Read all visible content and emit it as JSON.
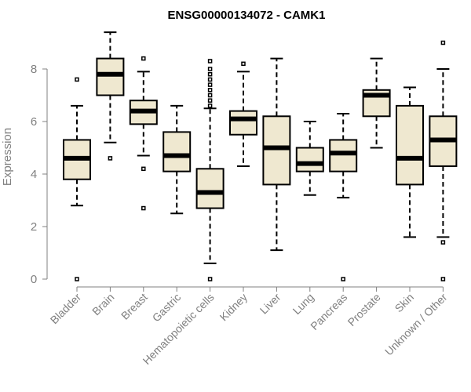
{
  "chart_data": {
    "type": "boxplot",
    "title": "ENSG00000134072 - CAMK1",
    "xlabel": "",
    "ylabel": "Expression",
    "ylim": [
      0,
      9.5
    ],
    "yticks": [
      0,
      2,
      4,
      6,
      8
    ],
    "box_color": "#EFE8D0",
    "categories": [
      "Bladder",
      "Brain",
      "Breast",
      "Gastric",
      "Hematopoietic cells",
      "Kidney",
      "Liver",
      "Lung",
      "Pancreas",
      "Prostate",
      "Skin",
      "Unknown / Other"
    ],
    "boxes": [
      {
        "name": "Bladder",
        "whisker_low": 2.8,
        "q1": 3.8,
        "median": 4.6,
        "q3": 5.3,
        "whisker_high": 6.6,
        "outliers": [
          0,
          7.6
        ]
      },
      {
        "name": "Brain",
        "whisker_low": 5.2,
        "q1": 7.0,
        "median": 7.8,
        "q3": 8.4,
        "whisker_high": 9.4,
        "outliers": [
          4.6
        ]
      },
      {
        "name": "Breast",
        "whisker_low": 4.7,
        "q1": 5.9,
        "median": 6.4,
        "q3": 6.8,
        "whisker_high": 7.9,
        "outliers": [
          2.7,
          4.2,
          8.4
        ]
      },
      {
        "name": "Gastric",
        "whisker_low": 2.5,
        "q1": 4.1,
        "median": 4.7,
        "q3": 5.6,
        "whisker_high": 6.6,
        "outliers": []
      },
      {
        "name": "Hematopoietic cells",
        "whisker_low": 0.6,
        "q1": 2.7,
        "median": 3.3,
        "q3": 4.2,
        "whisker_high": 6.5,
        "outliers": [
          0,
          6.6,
          6.8,
          7.0,
          7.2,
          7.4,
          7.6,
          7.8,
          8.0,
          8.3
        ]
      },
      {
        "name": "Kidney",
        "whisker_low": 4.3,
        "q1": 5.5,
        "median": 6.1,
        "q3": 6.4,
        "whisker_high": 7.9,
        "outliers": [
          8.2
        ]
      },
      {
        "name": "Liver",
        "whisker_low": 1.1,
        "q1": 3.6,
        "median": 5.0,
        "q3": 6.2,
        "whisker_high": 8.4,
        "outliers": []
      },
      {
        "name": "Lung",
        "whisker_low": 3.2,
        "q1": 4.1,
        "median": 4.4,
        "q3": 5.0,
        "whisker_high": 6.0,
        "outliers": []
      },
      {
        "name": "Pancreas",
        "whisker_low": 3.1,
        "q1": 4.1,
        "median": 4.8,
        "q3": 5.3,
        "whisker_high": 6.3,
        "outliers": [
          0
        ]
      },
      {
        "name": "Prostate",
        "whisker_low": 5.0,
        "q1": 6.2,
        "median": 7.0,
        "q3": 7.2,
        "whisker_high": 8.4,
        "outliers": []
      },
      {
        "name": "Skin",
        "whisker_low": 1.6,
        "q1": 3.6,
        "median": 4.6,
        "q3": 6.6,
        "whisker_high": 7.3,
        "outliers": []
      },
      {
        "name": "Unknown / Other",
        "whisker_low": 1.6,
        "q1": 4.3,
        "median": 5.3,
        "q3": 6.2,
        "whisker_high": 8.0,
        "outliers": [
          0,
          1.4,
          9.0
        ]
      }
    ]
  }
}
